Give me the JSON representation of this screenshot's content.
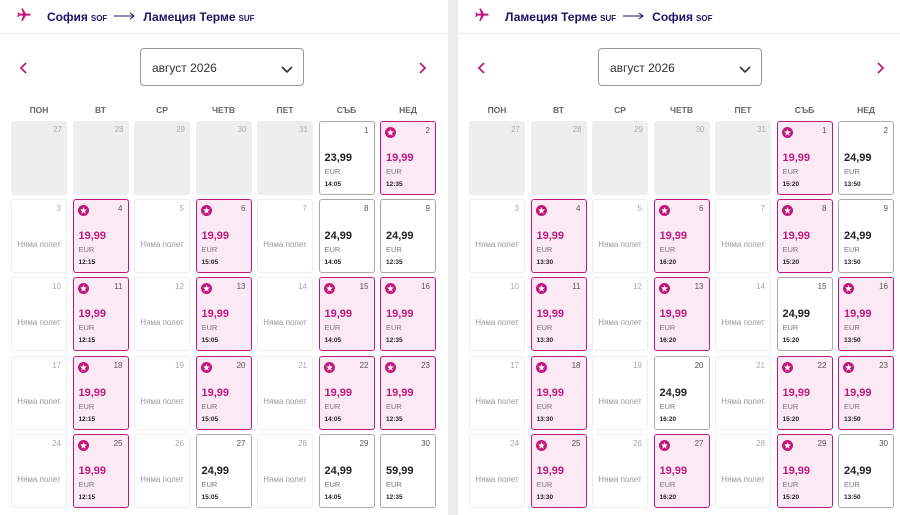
{
  "panels": [
    {
      "from": "София",
      "from_code": "SOF",
      "to": "Ламеция Терме",
      "to_code": "SUF",
      "month": "август 2026",
      "weekdays": [
        "ПОН",
        "ВТ",
        "СР",
        "ЧЕТВ",
        "ПЕТ",
        "СЪБ",
        "НЕД"
      ],
      "days": [
        {
          "day": "27",
          "outside": true
        },
        {
          "day": "28",
          "outside": true
        },
        {
          "day": "29",
          "outside": true
        },
        {
          "day": "30",
          "outside": true
        },
        {
          "day": "31",
          "outside": true
        },
        {
          "day": "1",
          "price": "23,99",
          "currency": "EUR",
          "time": "14:05"
        },
        {
          "day": "2",
          "price": "19,99",
          "currency": "EUR",
          "time": "12:35",
          "promo": true
        },
        {
          "day": "3",
          "note": "Няма полет"
        },
        {
          "day": "4",
          "price": "19,99",
          "currency": "EUR",
          "time": "12:15",
          "promo": true
        },
        {
          "day": "5",
          "note": "Няма полет"
        },
        {
          "day": "6",
          "price": "19,99",
          "currency": "EUR",
          "time": "15:05",
          "promo": true
        },
        {
          "day": "7",
          "note": "Няма полет"
        },
        {
          "day": "8",
          "price": "24,99",
          "currency": "EUR",
          "time": "14:05"
        },
        {
          "day": "9",
          "price": "24,99",
          "currency": "EUR",
          "time": "12:35"
        },
        {
          "day": "10",
          "note": "Няма полет"
        },
        {
          "day": "11",
          "price": "19,99",
          "currency": "EUR",
          "time": "12:15",
          "promo": true
        },
        {
          "day": "12",
          "note": "Няма полет"
        },
        {
          "day": "13",
          "price": "19,99",
          "currency": "EUR",
          "time": "15:05",
          "promo": true
        },
        {
          "day": "14",
          "note": "Няма полет"
        },
        {
          "day": "15",
          "price": "19,99",
          "currency": "EUR",
          "time": "14:05",
          "promo": true
        },
        {
          "day": "16",
          "price": "19,99",
          "currency": "EUR",
          "time": "12:35",
          "promo": true
        },
        {
          "day": "17",
          "note": "Няма полет"
        },
        {
          "day": "18",
          "price": "19,99",
          "currency": "EUR",
          "time": "12:15",
          "promo": true
        },
        {
          "day": "19",
          "note": "Няма полет"
        },
        {
          "day": "20",
          "price": "19,99",
          "currency": "EUR",
          "time": "15:05",
          "promo": true
        },
        {
          "day": "21",
          "note": "Няма полет"
        },
        {
          "day": "22",
          "price": "19,99",
          "currency": "EUR",
          "time": "14:05",
          "promo": true
        },
        {
          "day": "23",
          "price": "19,99",
          "currency": "EUR",
          "time": "12:35",
          "promo": true
        },
        {
          "day": "24",
          "note": "Няма полет"
        },
        {
          "day": "25",
          "price": "19,99",
          "currency": "EUR",
          "time": "12:15",
          "promo": true
        },
        {
          "day": "26",
          "note": "Няма полет"
        },
        {
          "day": "27",
          "price": "24,99",
          "currency": "EUR",
          "time": "15:05"
        },
        {
          "day": "28",
          "note": "Няма полет"
        },
        {
          "day": "29",
          "price": "24,99",
          "currency": "EUR",
          "time": "14:05"
        },
        {
          "day": "30",
          "price": "59,99",
          "currency": "EUR",
          "time": "12:35"
        }
      ]
    },
    {
      "from": "Ламеция Терме",
      "from_code": "SUF",
      "to": "София",
      "to_code": "SOF",
      "month": "август 2026",
      "weekdays": [
        "ПОН",
        "ВТ",
        "СР",
        "ЧЕТВ",
        "ПЕТ",
        "СЪБ",
        "НЕД"
      ],
      "days": [
        {
          "day": "27",
          "outside": true
        },
        {
          "day": "28",
          "outside": true
        },
        {
          "day": "29",
          "outside": true
        },
        {
          "day": "30",
          "outside": true
        },
        {
          "day": "31",
          "outside": true
        },
        {
          "day": "1",
          "price": "19,99",
          "currency": "EUR",
          "time": "15:20",
          "promo": true
        },
        {
          "day": "2",
          "price": "24,99",
          "currency": "EUR",
          "time": "13:50"
        },
        {
          "day": "3",
          "note": "Няма полет"
        },
        {
          "day": "4",
          "price": "19,99",
          "currency": "EUR",
          "time": "13:30",
          "promo": true
        },
        {
          "day": "5",
          "note": "Няма полет"
        },
        {
          "day": "6",
          "price": "19,99",
          "currency": "EUR",
          "time": "16:20",
          "promo": true
        },
        {
          "day": "7",
          "note": "Няма полет"
        },
        {
          "day": "8",
          "price": "19,99",
          "currency": "EUR",
          "time": "15:20",
          "promo": true
        },
        {
          "day": "9",
          "price": "24,99",
          "currency": "EUR",
          "time": "13:50"
        },
        {
          "day": "10",
          "note": "Няма полет"
        },
        {
          "day": "11",
          "price": "19,99",
          "currency": "EUR",
          "time": "13:30",
          "promo": true
        },
        {
          "day": "12",
          "note": "Няма полет"
        },
        {
          "day": "13",
          "price": "19,99",
          "currency": "EUR",
          "time": "16:20",
          "promo": true
        },
        {
          "day": "14",
          "note": "Няма полет"
        },
        {
          "day": "15",
          "price": "24,99",
          "currency": "EUR",
          "time": "15:20"
        },
        {
          "day": "16",
          "price": "19,99",
          "currency": "EUR",
          "time": "13:50",
          "promo": true
        },
        {
          "day": "17",
          "note": "Няма полет"
        },
        {
          "day": "18",
          "price": "19,99",
          "currency": "EUR",
          "time": "13:30",
          "promo": true
        },
        {
          "day": "19",
          "note": "Няма полет"
        },
        {
          "day": "20",
          "price": "24,99",
          "currency": "EUR",
          "time": "16:20"
        },
        {
          "day": "21",
          "note": "Няма полет"
        },
        {
          "day": "22",
          "price": "19,99",
          "currency": "EUR",
          "time": "15:20",
          "promo": true
        },
        {
          "day": "23",
          "price": "19,99",
          "currency": "EUR",
          "time": "13:50",
          "promo": true
        },
        {
          "day": "24",
          "note": "Няма полет"
        },
        {
          "day": "25",
          "price": "19,99",
          "currency": "EUR",
          "time": "13:30",
          "promo": true
        },
        {
          "day": "26",
          "note": "Няма полет"
        },
        {
          "day": "27",
          "price": "19,99",
          "currency": "EUR",
          "time": "16:20",
          "promo": true
        },
        {
          "day": "28",
          "note": "Няма полет"
        },
        {
          "day": "29",
          "price": "19,99",
          "currency": "EUR",
          "time": "15:20",
          "promo": true
        },
        {
          "day": "30",
          "price": "24,99",
          "currency": "EUR",
          "time": "13:50"
        }
      ]
    }
  ]
}
